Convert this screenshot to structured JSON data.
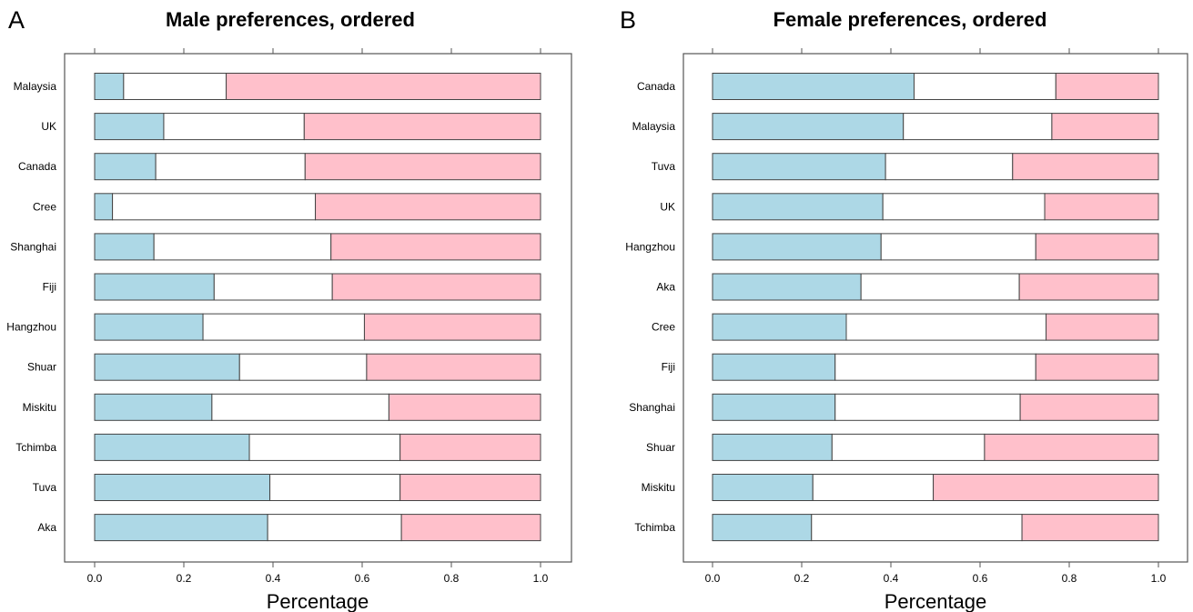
{
  "colors": {
    "blue": "#ADD8E6",
    "white": "#FFFFFF",
    "pink": "#FFC0CB",
    "frame": "#555555",
    "bar_edge": "#444444"
  },
  "chart_data": [
    {
      "type": "bar",
      "orientation": "horizontal",
      "stacked": true,
      "normalized": true,
      "panel_letter": "A",
      "title": "Male preferences, ordered",
      "xlabel": "Percentage",
      "ylabel": "",
      "xlim": [
        0,
        1
      ],
      "x_ticks": [
        "0.0",
        "0.2",
        "0.4",
        "0.6",
        "0.8",
        "1.0"
      ],
      "legend": "none",
      "categories": [
        "Malaysia",
        "UK",
        "Canada",
        "Cree",
        "Shanghai",
        "Fiji",
        "Hangzhou",
        "Shuar",
        "Miskitu",
        "Tchimba",
        "Tuva",
        "Aka"
      ],
      "series": [
        {
          "color": "#ADD8E6",
          "values": [
            0.065,
            0.155,
            0.137,
            0.04,
            0.133,
            0.268,
            0.243,
            0.325,
            0.263,
            0.347,
            0.393,
            0.388
          ]
        },
        {
          "color": "#FFFFFF",
          "values": [
            0.23,
            0.315,
            0.335,
            0.455,
            0.397,
            0.265,
            0.362,
            0.285,
            0.397,
            0.338,
            0.292,
            0.3
          ]
        },
        {
          "color": "#FFC0CB",
          "values": [
            0.705,
            0.53,
            0.528,
            0.505,
            0.47,
            0.467,
            0.395,
            0.39,
            0.34,
            0.315,
            0.315,
            0.312
          ]
        }
      ]
    },
    {
      "type": "bar",
      "orientation": "horizontal",
      "stacked": true,
      "normalized": true,
      "panel_letter": "B",
      "title": "Female preferences, ordered",
      "xlabel": "Percentage",
      "ylabel": "",
      "xlim": [
        0,
        1
      ],
      "x_ticks": [
        "0.0",
        "0.2",
        "0.4",
        "0.6",
        "0.8",
        "1.0"
      ],
      "legend": "none",
      "categories": [
        "Canada",
        "Malaysia",
        "Tuva",
        "UK",
        "Hangzhou",
        "Aka",
        "Cree",
        "Fiji",
        "Shanghai",
        "Shuar",
        "Miskitu",
        "Tchimba"
      ],
      "series": [
        {
          "color": "#ADD8E6",
          "values": [
            0.452,
            0.428,
            0.388,
            0.382,
            0.378,
            0.333,
            0.3,
            0.275,
            0.275,
            0.268,
            0.225,
            0.222
          ]
        },
        {
          "color": "#FFFFFF",
          "values": [
            0.318,
            0.333,
            0.285,
            0.363,
            0.347,
            0.355,
            0.448,
            0.45,
            0.415,
            0.342,
            0.27,
            0.472
          ]
        },
        {
          "color": "#FFC0CB",
          "values": [
            0.23,
            0.239,
            0.327,
            0.255,
            0.275,
            0.312,
            0.252,
            0.275,
            0.31,
            0.39,
            0.505,
            0.306
          ]
        }
      ]
    }
  ]
}
